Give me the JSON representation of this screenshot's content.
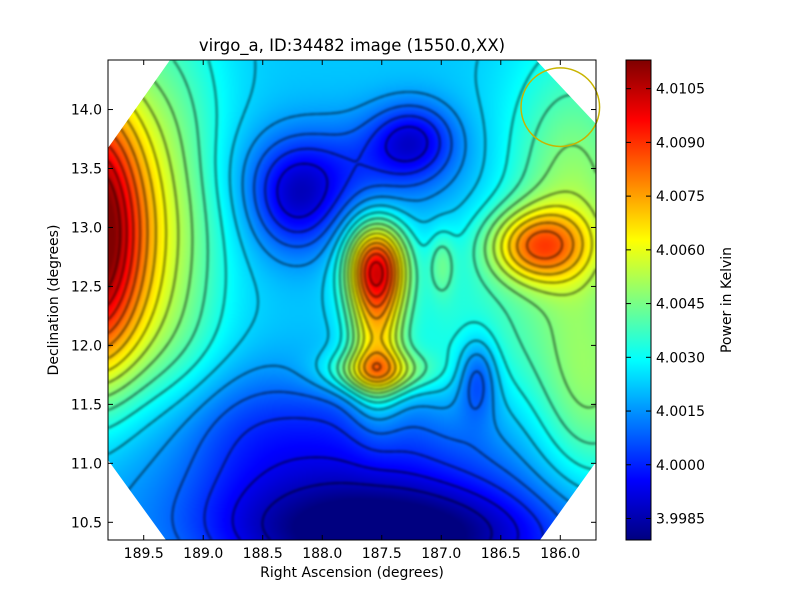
{
  "chart_data": {
    "type": "heatmap",
    "title": "virgo_a, ID:34482 image (1550.0,XX)",
    "xlabel": "Right Ascension (degrees)",
    "ylabel": "Declination (degrees)",
    "colorbar_label": "Power in Kelvin",
    "x_reversed": true,
    "xlim": [
      189.8,
      185.7
    ],
    "ylim": [
      10.35,
      14.42
    ],
    "x_ticks": [
      "189.5",
      "189.0",
      "188.5",
      "188.0",
      "187.5",
      "187.0",
      "186.5",
      "186.0"
    ],
    "y_ticks": [
      "10.5",
      "11.0",
      "11.5",
      "12.0",
      "12.5",
      "13.0",
      "13.5",
      "14.0"
    ],
    "colorbar_range": [
      3.9979,
      4.0113
    ],
    "colorbar_ticks": [
      "3.9985",
      "4.0000",
      "4.0015",
      "4.0030",
      "4.0045",
      "4.0060",
      "4.0075",
      "4.0090",
      "4.0105"
    ],
    "colormap": "jet",
    "contours": "black lines",
    "beam_circle": {
      "ra": 186.0,
      "dec": 14.02,
      "radius_deg": 0.33,
      "color": "#c8b400"
    },
    "features": [
      {
        "ra": 189.8,
        "dec": 12.9,
        "value": 4.011
      },
      {
        "ra": 187.55,
        "dec": 12.68,
        "value": 4.008
      },
      {
        "ra": 186.2,
        "dec": 12.85,
        "value": 4.0072
      },
      {
        "ra": 187.5,
        "dec": 11.76,
        "value": 4.0055
      },
      {
        "ra": 188.22,
        "dec": 13.22,
        "value": 3.9998
      },
      {
        "ra": 187.25,
        "dec": 13.75,
        "value": 3.9998
      },
      {
        "ra": 186.7,
        "dec": 11.75,
        "value": 4.0002
      },
      {
        "ra": 187.3,
        "dec": 10.4,
        "value": 3.998
      }
    ]
  }
}
